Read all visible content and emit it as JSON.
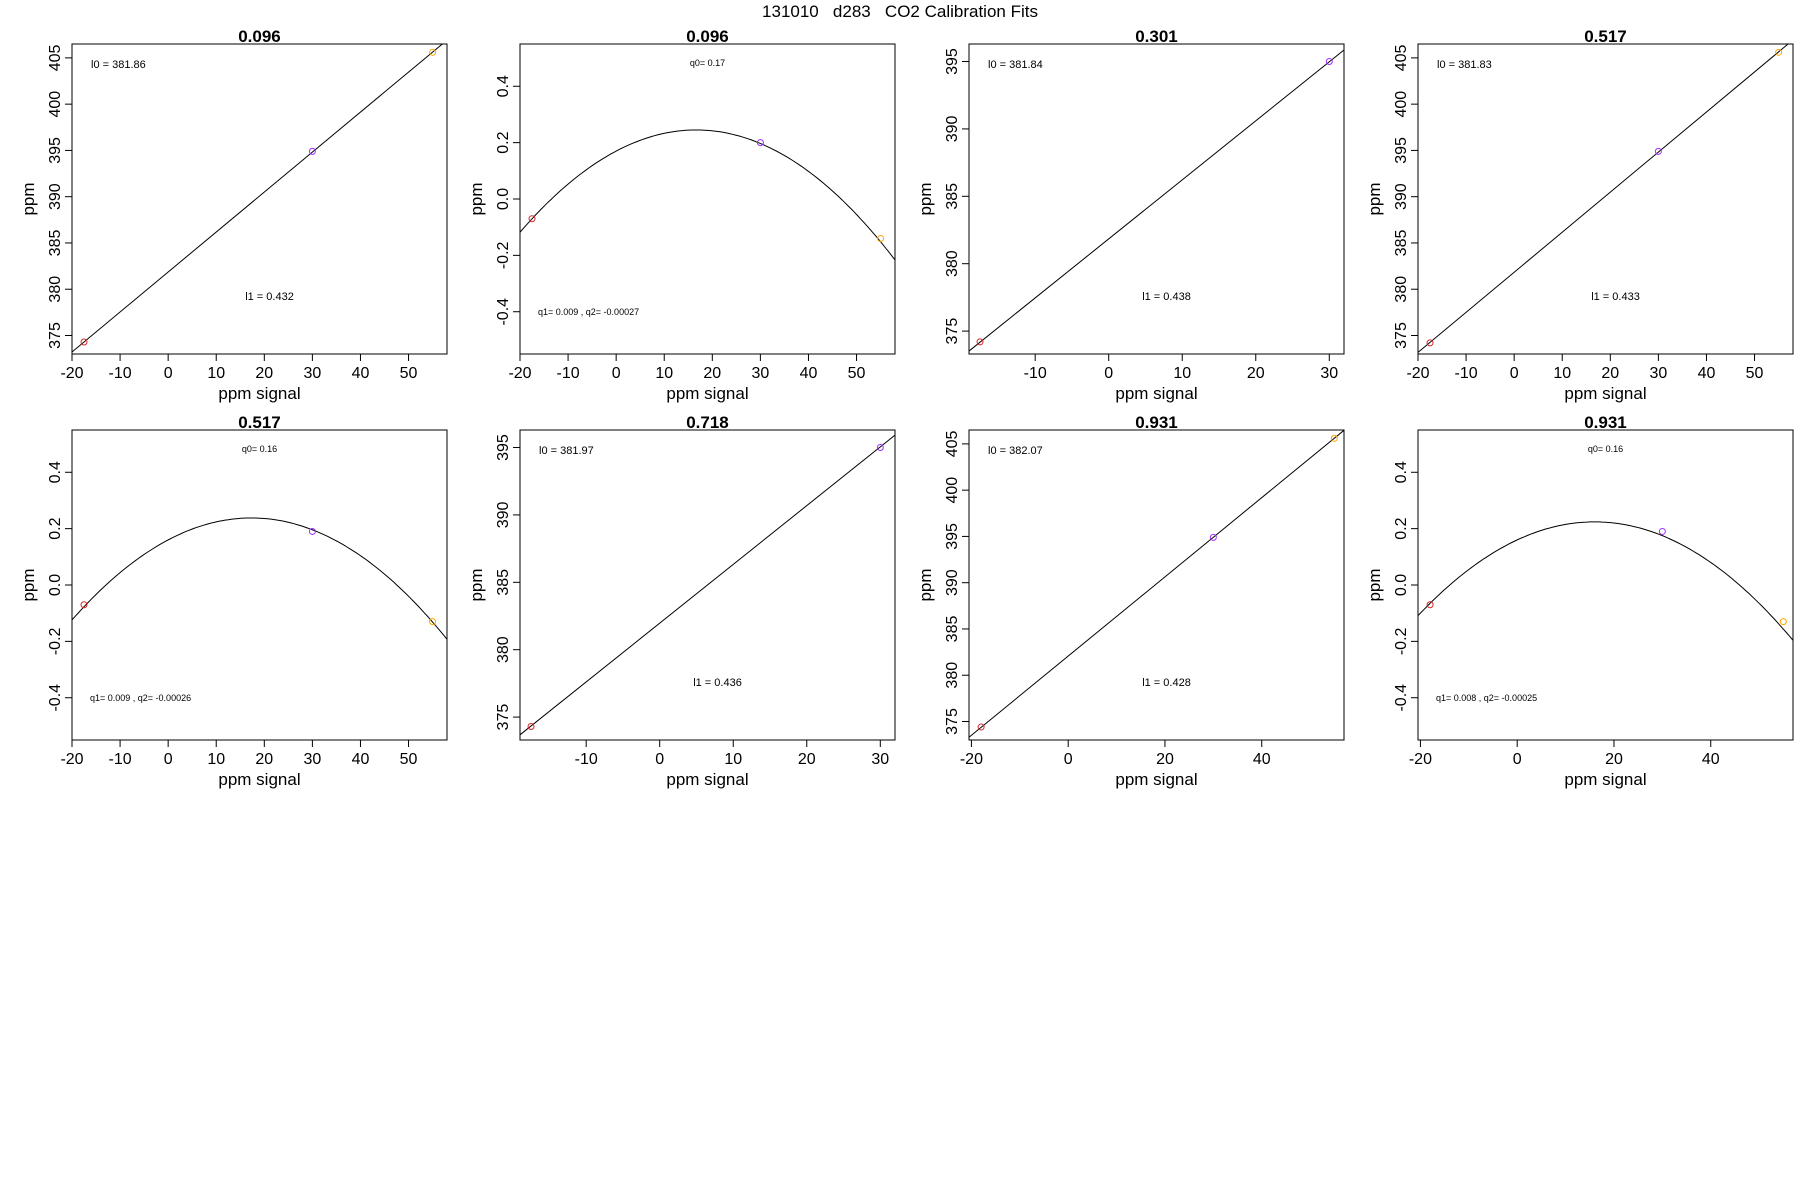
{
  "page_title": "131010   d283   CO2 Calibration Fits",
  "chart_data": [
    {
      "type": "scatter",
      "fit": "linear",
      "title": "0.096",
      "xlabel": "ppm signal",
      "ylabel": "ppm",
      "xlim": [
        -20,
        58
      ],
      "ylim": [
        373,
        406.5
      ],
      "xticks": [
        "-20",
        "-10",
        "0",
        "10",
        "20",
        "30",
        "40",
        "50"
      ],
      "yticks": [
        "375",
        "380",
        "385",
        "390",
        "395",
        "400",
        "405"
      ],
      "line": {
        "intercept": 381.86,
        "slope": 0.432
      },
      "points": [
        {
          "x": -17.5,
          "y": 374.3,
          "color": "#d62728"
        },
        {
          "x": 30,
          "y": 394.9,
          "color": "#9b30ff"
        },
        {
          "x": 55,
          "y": 405.6,
          "color": "#ffa500"
        }
      ],
      "annotations": [
        {
          "text": "l0 =  381.86",
          "pos": "top-left"
        },
        {
          "text": "l1 =  0.432",
          "pos": "bottom-center"
        }
      ]
    },
    {
      "type": "scatter",
      "fit": "quadratic",
      "title": "0.096",
      "xlabel": "ppm signal",
      "ylabel": "ppm",
      "xlim": [
        -20,
        58
      ],
      "ylim": [
        -0.55,
        0.55
      ],
      "xticks": [
        "-20",
        "-10",
        "0",
        "10",
        "20",
        "30",
        "40",
        "50"
      ],
      "yticks": [
        "-0.4",
        "-0.2",
        "0.0",
        "0.2",
        "0.4"
      ],
      "quad": {
        "q0": 0.17,
        "q1": 0.009,
        "q2": -0.00027
      },
      "points": [
        {
          "x": -17.5,
          "y": -0.07,
          "color": "#d62728"
        },
        {
          "x": 30,
          "y": 0.2,
          "color": "#9b30ff"
        },
        {
          "x": 55,
          "y": -0.14,
          "color": "#ffa500"
        }
      ],
      "annotations": [
        {
          "text": "q0= 0.17",
          "pos": "top-center"
        },
        {
          "text": "q1= 0.009 , q2= -0.00027",
          "pos": "bottom-left"
        }
      ]
    },
    {
      "type": "scatter",
      "fit": "linear",
      "title": "0.301",
      "xlabel": "ppm signal",
      "ylabel": "ppm",
      "xlim": [
        -19,
        32
      ],
      "ylim": [
        373.3,
        396.3
      ],
      "xticks": [
        "-10",
        "0",
        "10",
        "20",
        "30"
      ],
      "yticks": [
        "375",
        "380",
        "385",
        "390",
        "395"
      ],
      "line": {
        "intercept": 381.84,
        "slope": 0.438
      },
      "points": [
        {
          "x": -17.5,
          "y": 374.2,
          "color": "#d62728"
        },
        {
          "x": 30,
          "y": 395,
          "color": "#9b30ff"
        }
      ],
      "annotations": [
        {
          "text": "l0 =  381.84",
          "pos": "top-left"
        },
        {
          "text": "l1 =  0.438",
          "pos": "bottom-center"
        }
      ]
    },
    {
      "type": "scatter",
      "fit": "linear",
      "title": "0.517",
      "xlabel": "ppm signal",
      "ylabel": "ppm",
      "xlim": [
        -20,
        58
      ],
      "ylim": [
        373,
        406.5
      ],
      "xticks": [
        "-20",
        "-10",
        "0",
        "10",
        "20",
        "30",
        "40",
        "50"
      ],
      "yticks": [
        "375",
        "380",
        "385",
        "390",
        "395",
        "400",
        "405"
      ],
      "line": {
        "intercept": 381.83,
        "slope": 0.433
      },
      "points": [
        {
          "x": -17.5,
          "y": 374.2,
          "color": "#d62728"
        },
        {
          "x": 30,
          "y": 394.9,
          "color": "#9b30ff"
        },
        {
          "x": 55,
          "y": 405.6,
          "color": "#ffa500"
        }
      ],
      "annotations": [
        {
          "text": "l0 =  381.83",
          "pos": "top-left"
        },
        {
          "text": "l1 =  0.433",
          "pos": "bottom-center"
        }
      ]
    },
    {
      "type": "scatter",
      "fit": "quadratic",
      "title": "0.517",
      "xlabel": "ppm signal",
      "ylabel": "ppm",
      "xlim": [
        -20,
        58
      ],
      "ylim": [
        -0.55,
        0.55
      ],
      "xticks": [
        "-20",
        "-10",
        "0",
        "10",
        "20",
        "30",
        "40",
        "50"
      ],
      "yticks": [
        "-0.4",
        "-0.2",
        "0.0",
        "0.2",
        "0.4"
      ],
      "quad": {
        "q0": 0.16,
        "q1": 0.009,
        "q2": -0.00026
      },
      "points": [
        {
          "x": -17.5,
          "y": -0.07,
          "color": "#d62728"
        },
        {
          "x": 30,
          "y": 0.19,
          "color": "#9b30ff"
        },
        {
          "x": 55,
          "y": -0.13,
          "color": "#ffa500"
        }
      ],
      "annotations": [
        {
          "text": "q0= 0.16",
          "pos": "top-center"
        },
        {
          "text": "q1= 0.009 , q2= -0.00026",
          "pos": "bottom-left"
        }
      ]
    },
    {
      "type": "scatter",
      "fit": "linear",
      "title": "0.718",
      "xlabel": "ppm signal",
      "ylabel": "ppm",
      "xlim": [
        -19,
        32
      ],
      "ylim": [
        373.3,
        396.3
      ],
      "xticks": [
        "-10",
        "0",
        "10",
        "20",
        "30"
      ],
      "yticks": [
        "375",
        "380",
        "385",
        "390",
        "395"
      ],
      "line": {
        "intercept": 381.97,
        "slope": 0.436
      },
      "points": [
        {
          "x": -17.5,
          "y": 374.3,
          "color": "#d62728"
        },
        {
          "x": 30,
          "y": 395,
          "color": "#9b30ff"
        }
      ],
      "annotations": [
        {
          "text": "l0 =  381.97",
          "pos": "top-left"
        },
        {
          "text": "l1 =  0.436",
          "pos": "bottom-center"
        }
      ]
    },
    {
      "type": "scatter",
      "fit": "linear",
      "title": "0.931",
      "xlabel": "ppm signal",
      "ylabel": "ppm",
      "xlim": [
        -20.5,
        57
      ],
      "ylim": [
        373,
        406.5
      ],
      "xticks": [
        "-20",
        "0",
        "20",
        "40"
      ],
      "yticks": [
        "375",
        "380",
        "385",
        "390",
        "395",
        "400",
        "405"
      ],
      "line": {
        "intercept": 382.07,
        "slope": 0.428
      },
      "points": [
        {
          "x": -18,
          "y": 374.4,
          "color": "#d62728"
        },
        {
          "x": 30,
          "y": 394.9,
          "color": "#9b30ff"
        },
        {
          "x": 55,
          "y": 405.6,
          "color": "#ffa500"
        }
      ],
      "annotations": [
        {
          "text": "l0 =  382.07",
          "pos": "top-left"
        },
        {
          "text": "l1 =  0.428",
          "pos": "bottom-center"
        }
      ]
    },
    {
      "type": "scatter",
      "fit": "quadratic",
      "title": "0.931",
      "xlabel": "ppm signal",
      "ylabel": "ppm",
      "xlim": [
        -20.5,
        57
      ],
      "ylim": [
        -0.55,
        0.55
      ],
      "xticks": [
        "-20",
        "0",
        "20",
        "40"
      ],
      "yticks": [
        "-0.4",
        "-0.2",
        "0.0",
        "0.2",
        "0.4"
      ],
      "quad": {
        "q0": 0.16,
        "q1": 0.008,
        "q2": -0.00025
      },
      "points": [
        {
          "x": -18,
          "y": -0.07,
          "color": "#d62728"
        },
        {
          "x": 30,
          "y": 0.19,
          "color": "#9b30ff"
        },
        {
          "x": 55,
          "y": -0.13,
          "color": "#ffa500"
        }
      ],
      "annotations": [
        {
          "text": "q0= 0.16",
          "pos": "top-center"
        },
        {
          "text": "q1= 0.008 , q2= -0.00025",
          "pos": "bottom-left"
        }
      ]
    }
  ]
}
